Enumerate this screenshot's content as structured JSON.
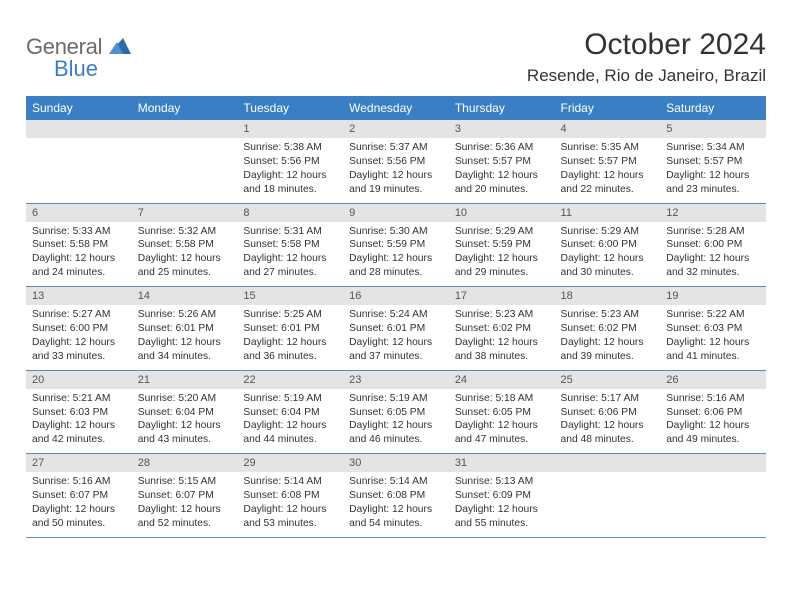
{
  "logo": {
    "text1": "General",
    "text2": "Blue"
  },
  "title": "October 2024",
  "location": "Resende, Rio de Janeiro, Brazil",
  "colors": {
    "header_bg": "#3a7fc4",
    "header_text": "#ffffff",
    "daynum_bg": "#e4e4e4",
    "border": "#5a8bb5",
    "body_text": "#333333",
    "logo_gray": "#6b6b6b",
    "logo_blue": "#3a7fc4"
  },
  "day_names": [
    "Sunday",
    "Monday",
    "Tuesday",
    "Wednesday",
    "Thursday",
    "Friday",
    "Saturday"
  ],
  "weeks": [
    [
      null,
      null,
      {
        "n": "1",
        "sr": "Sunrise: 5:38 AM",
        "ss": "Sunset: 5:56 PM",
        "d1": "Daylight: 12 hours",
        "d2": "and 18 minutes."
      },
      {
        "n": "2",
        "sr": "Sunrise: 5:37 AM",
        "ss": "Sunset: 5:56 PM",
        "d1": "Daylight: 12 hours",
        "d2": "and 19 minutes."
      },
      {
        "n": "3",
        "sr": "Sunrise: 5:36 AM",
        "ss": "Sunset: 5:57 PM",
        "d1": "Daylight: 12 hours",
        "d2": "and 20 minutes."
      },
      {
        "n": "4",
        "sr": "Sunrise: 5:35 AM",
        "ss": "Sunset: 5:57 PM",
        "d1": "Daylight: 12 hours",
        "d2": "and 22 minutes."
      },
      {
        "n": "5",
        "sr": "Sunrise: 5:34 AM",
        "ss": "Sunset: 5:57 PM",
        "d1": "Daylight: 12 hours",
        "d2": "and 23 minutes."
      }
    ],
    [
      {
        "n": "6",
        "sr": "Sunrise: 5:33 AM",
        "ss": "Sunset: 5:58 PM",
        "d1": "Daylight: 12 hours",
        "d2": "and 24 minutes."
      },
      {
        "n": "7",
        "sr": "Sunrise: 5:32 AM",
        "ss": "Sunset: 5:58 PM",
        "d1": "Daylight: 12 hours",
        "d2": "and 25 minutes."
      },
      {
        "n": "8",
        "sr": "Sunrise: 5:31 AM",
        "ss": "Sunset: 5:58 PM",
        "d1": "Daylight: 12 hours",
        "d2": "and 27 minutes."
      },
      {
        "n": "9",
        "sr": "Sunrise: 5:30 AM",
        "ss": "Sunset: 5:59 PM",
        "d1": "Daylight: 12 hours",
        "d2": "and 28 minutes."
      },
      {
        "n": "10",
        "sr": "Sunrise: 5:29 AM",
        "ss": "Sunset: 5:59 PM",
        "d1": "Daylight: 12 hours",
        "d2": "and 29 minutes."
      },
      {
        "n": "11",
        "sr": "Sunrise: 5:29 AM",
        "ss": "Sunset: 6:00 PM",
        "d1": "Daylight: 12 hours",
        "d2": "and 30 minutes."
      },
      {
        "n": "12",
        "sr": "Sunrise: 5:28 AM",
        "ss": "Sunset: 6:00 PM",
        "d1": "Daylight: 12 hours",
        "d2": "and 32 minutes."
      }
    ],
    [
      {
        "n": "13",
        "sr": "Sunrise: 5:27 AM",
        "ss": "Sunset: 6:00 PM",
        "d1": "Daylight: 12 hours",
        "d2": "and 33 minutes."
      },
      {
        "n": "14",
        "sr": "Sunrise: 5:26 AM",
        "ss": "Sunset: 6:01 PM",
        "d1": "Daylight: 12 hours",
        "d2": "and 34 minutes."
      },
      {
        "n": "15",
        "sr": "Sunrise: 5:25 AM",
        "ss": "Sunset: 6:01 PM",
        "d1": "Daylight: 12 hours",
        "d2": "and 36 minutes."
      },
      {
        "n": "16",
        "sr": "Sunrise: 5:24 AM",
        "ss": "Sunset: 6:01 PM",
        "d1": "Daylight: 12 hours",
        "d2": "and 37 minutes."
      },
      {
        "n": "17",
        "sr": "Sunrise: 5:23 AM",
        "ss": "Sunset: 6:02 PM",
        "d1": "Daylight: 12 hours",
        "d2": "and 38 minutes."
      },
      {
        "n": "18",
        "sr": "Sunrise: 5:23 AM",
        "ss": "Sunset: 6:02 PM",
        "d1": "Daylight: 12 hours",
        "d2": "and 39 minutes."
      },
      {
        "n": "19",
        "sr": "Sunrise: 5:22 AM",
        "ss": "Sunset: 6:03 PM",
        "d1": "Daylight: 12 hours",
        "d2": "and 41 minutes."
      }
    ],
    [
      {
        "n": "20",
        "sr": "Sunrise: 5:21 AM",
        "ss": "Sunset: 6:03 PM",
        "d1": "Daylight: 12 hours",
        "d2": "and 42 minutes."
      },
      {
        "n": "21",
        "sr": "Sunrise: 5:20 AM",
        "ss": "Sunset: 6:04 PM",
        "d1": "Daylight: 12 hours",
        "d2": "and 43 minutes."
      },
      {
        "n": "22",
        "sr": "Sunrise: 5:19 AM",
        "ss": "Sunset: 6:04 PM",
        "d1": "Daylight: 12 hours",
        "d2": "and 44 minutes."
      },
      {
        "n": "23",
        "sr": "Sunrise: 5:19 AM",
        "ss": "Sunset: 6:05 PM",
        "d1": "Daylight: 12 hours",
        "d2": "and 46 minutes."
      },
      {
        "n": "24",
        "sr": "Sunrise: 5:18 AM",
        "ss": "Sunset: 6:05 PM",
        "d1": "Daylight: 12 hours",
        "d2": "and 47 minutes."
      },
      {
        "n": "25",
        "sr": "Sunrise: 5:17 AM",
        "ss": "Sunset: 6:06 PM",
        "d1": "Daylight: 12 hours",
        "d2": "and 48 minutes."
      },
      {
        "n": "26",
        "sr": "Sunrise: 5:16 AM",
        "ss": "Sunset: 6:06 PM",
        "d1": "Daylight: 12 hours",
        "d2": "and 49 minutes."
      }
    ],
    [
      {
        "n": "27",
        "sr": "Sunrise: 5:16 AM",
        "ss": "Sunset: 6:07 PM",
        "d1": "Daylight: 12 hours",
        "d2": "and 50 minutes."
      },
      {
        "n": "28",
        "sr": "Sunrise: 5:15 AM",
        "ss": "Sunset: 6:07 PM",
        "d1": "Daylight: 12 hours",
        "d2": "and 52 minutes."
      },
      {
        "n": "29",
        "sr": "Sunrise: 5:14 AM",
        "ss": "Sunset: 6:08 PM",
        "d1": "Daylight: 12 hours",
        "d2": "and 53 minutes."
      },
      {
        "n": "30",
        "sr": "Sunrise: 5:14 AM",
        "ss": "Sunset: 6:08 PM",
        "d1": "Daylight: 12 hours",
        "d2": "and 54 minutes."
      },
      {
        "n": "31",
        "sr": "Sunrise: 5:13 AM",
        "ss": "Sunset: 6:09 PM",
        "d1": "Daylight: 12 hours",
        "d2": "and 55 minutes."
      },
      null,
      null
    ]
  ]
}
